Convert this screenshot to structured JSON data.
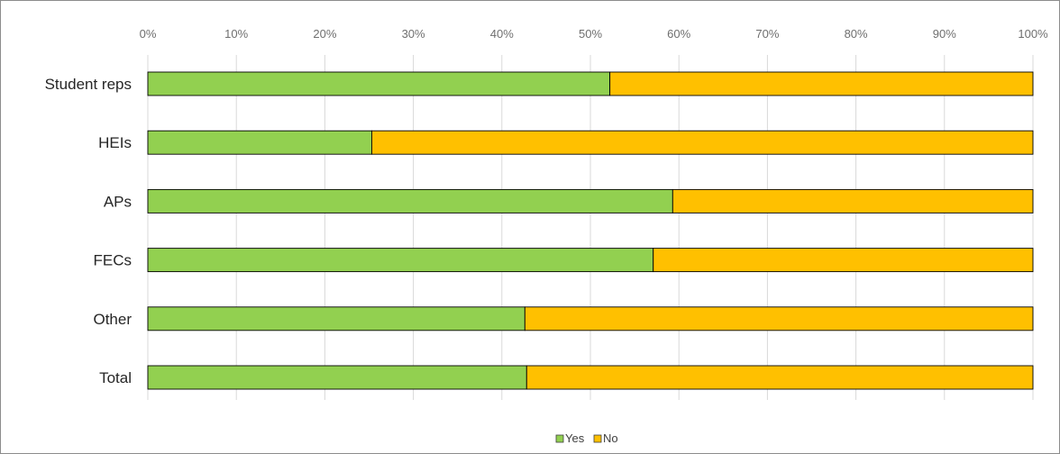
{
  "chart_data": {
    "type": "bar",
    "orientation": "horizontal",
    "stacked": "percent",
    "categories": [
      "Student reps",
      "HEIs",
      "APs",
      "FECs",
      "Other",
      "Total"
    ],
    "series": [
      {
        "name": "Yes",
        "color": "#92d050",
        "values": [
          52.2,
          25.3,
          59.3,
          57.1,
          42.6,
          42.8
        ]
      },
      {
        "name": "No",
        "color": "#ffc000",
        "values": [
          47.8,
          74.7,
          40.7,
          42.9,
          57.4,
          57.2
        ]
      }
    ],
    "xaxis": {
      "position": "top",
      "range": [
        0,
        100
      ],
      "ticks": [
        "0%",
        "10%",
        "20%",
        "30%",
        "40%",
        "50%",
        "60%",
        "70%",
        "80%",
        "90%",
        "100%"
      ]
    },
    "grid": true,
    "legend": "bottom",
    "title": "",
    "xlabel": "",
    "ylabel": ""
  }
}
